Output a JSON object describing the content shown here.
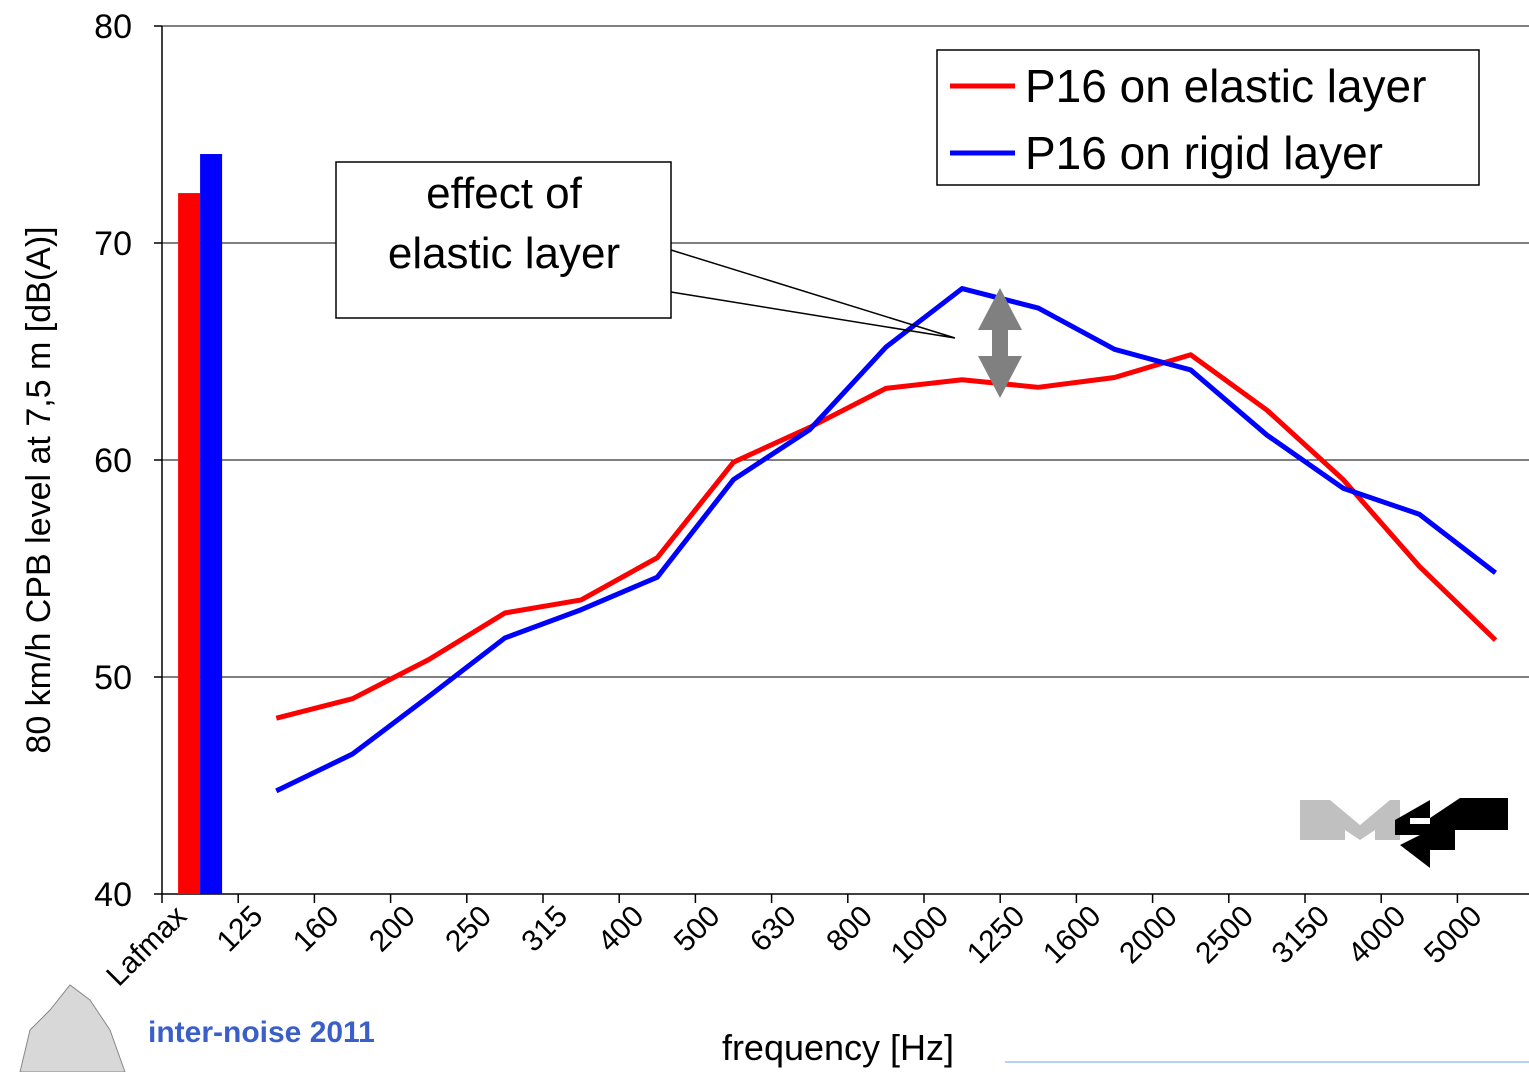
{
  "chart_data": {
    "type": "line",
    "y_axis_label": "80 km/h CPB level at 7,5 m [dB(A)]",
    "x_axis_label": "frequency [Hz]",
    "categories": [
      "Lafmax",
      "125",
      "160",
      "200",
      "250",
      "315",
      "400",
      "500",
      "630",
      "800",
      "1000",
      "1250",
      "1600",
      "2000",
      "2500",
      "3150",
      "4000",
      "5000"
    ],
    "bar_category": "Lafmax",
    "series": [
      {
        "name": "P16 on elastic layer",
        "color": "#ff0000",
        "values": [
          72.3,
          48.1,
          49.0,
          50.8,
          52.95,
          53.55,
          55.5,
          59.9,
          61.5,
          63.3,
          63.7,
          63.35,
          63.8,
          64.85,
          62.3,
          59.1,
          55.1,
          51.7
        ]
      },
      {
        "name": "P16 on rigid layer",
        "color": "#0000ff",
        "values": [
          74.1,
          44.75,
          46.45,
          49.1,
          51.8,
          53.1,
          54.6,
          59.1,
          61.4,
          65.2,
          67.9,
          67.0,
          65.1,
          64.15,
          61.15,
          58.7,
          57.5,
          54.8
        ]
      }
    ],
    "ylim": [
      40,
      80
    ],
    "yticks": [
      40,
      50,
      60,
      70,
      80
    ],
    "grid": true,
    "legend": "top-right",
    "annotation": [
      "effect of",
      "elastic layer"
    ],
    "logo_text": "inter-noise 2011"
  }
}
